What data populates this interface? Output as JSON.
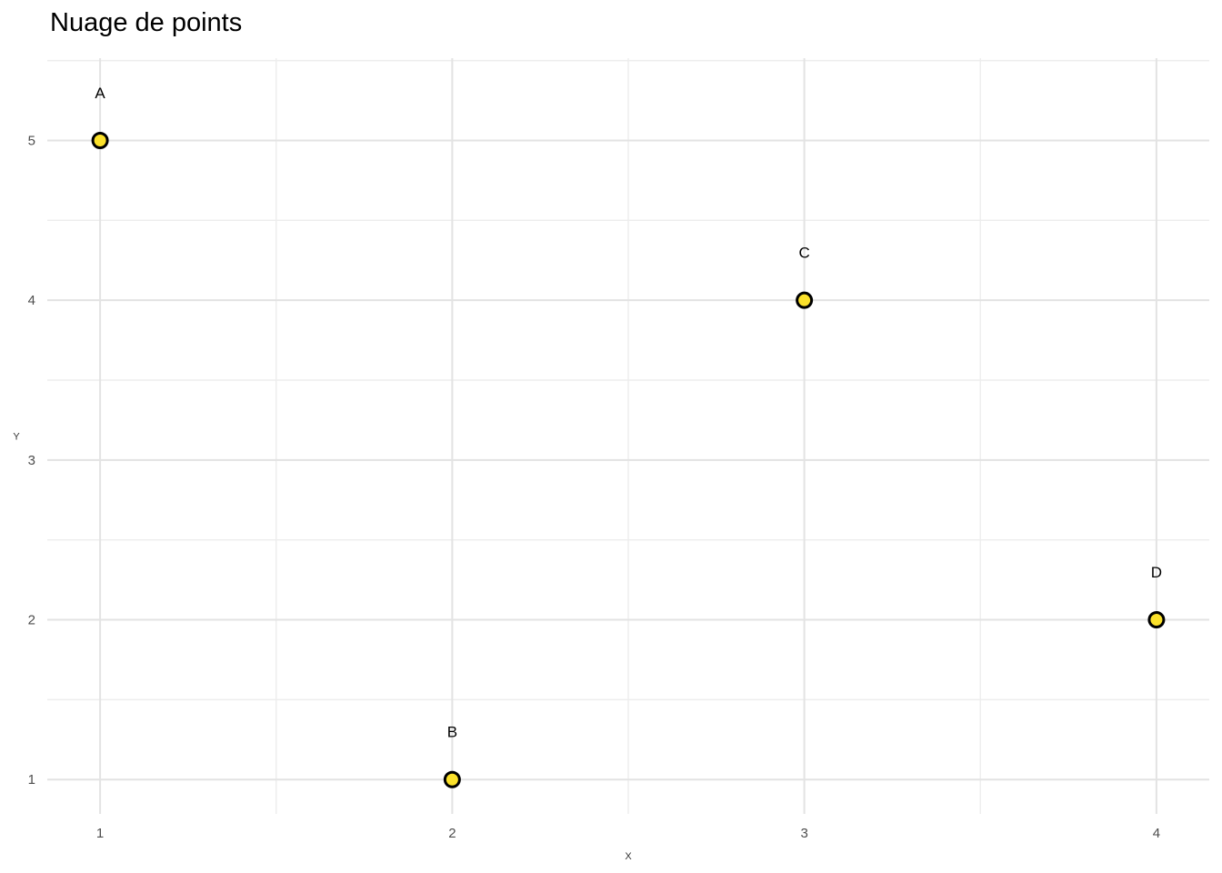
{
  "title": "Nuage de points",
  "chart_data": {
    "type": "scatter",
    "title": "Nuage de points",
    "xlabel": "X",
    "ylabel": "Y",
    "points": [
      {
        "label": "A",
        "x": 1,
        "y": 5
      },
      {
        "label": "B",
        "x": 2,
        "y": 1
      },
      {
        "label": "C",
        "x": 3,
        "y": 4
      },
      {
        "label": "D",
        "x": 4,
        "y": 2
      }
    ],
    "point_label_offset_y": 0.3,
    "xlim": [
      0.85,
      4.15
    ],
    "ylim": [
      0.785,
      5.515
    ],
    "x_major_ticks": [
      1,
      2,
      3,
      4
    ],
    "y_major_ticks": [
      1,
      2,
      3,
      4,
      5
    ],
    "x_minor_gridlines": [
      1.5,
      2.5,
      3.5
    ],
    "y_minor_gridlines": [
      1.5,
      2.5,
      3.5,
      4.5,
      5.5
    ],
    "grid": true,
    "legend": "none",
    "colors": {
      "background": "#FFFFFF",
      "grid_major": "#E3E3E3",
      "grid_minor": "#EDEDED",
      "point_fill": "#FBE12B",
      "point_stroke": "#000000",
      "tick_label": "#4D4D4D",
      "axis_title": "#333333",
      "title": "#000000"
    }
  }
}
